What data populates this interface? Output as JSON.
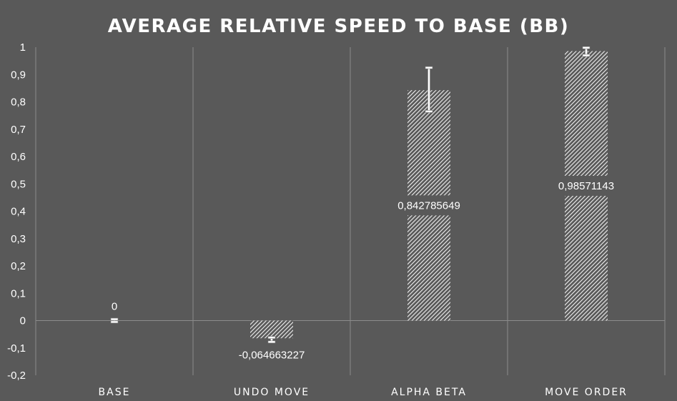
{
  "chart_data": {
    "type": "bar",
    "title": "AVERAGE RELATIVE SPEED TO BASE (BB)",
    "categories": [
      "BASE",
      "UNDO MOVE",
      "ALPHA BETA",
      "MOVE ORDER"
    ],
    "values": [
      0,
      -0.064663227,
      0.842785649,
      0.98571143
    ],
    "data_labels": [
      "0",
      "-0,064663227",
      "0,842785649",
      "0,98571143"
    ],
    "error_bars": [
      {
        "low": -0.005,
        "high": 0.005
      },
      {
        "low": -0.078,
        "high": -0.062
      },
      {
        "low": 0.765,
        "high": 0.925
      },
      {
        "low": 0.97,
        "high": 0.998
      }
    ],
    "ylim": [
      -0.2,
      1
    ],
    "yticks": [
      {
        "value": 1,
        "label": "1"
      },
      {
        "value": 0.9,
        "label": "0,9"
      },
      {
        "value": 0.8,
        "label": "0,8"
      },
      {
        "value": 0.7,
        "label": "0,7"
      },
      {
        "value": 0.6,
        "label": "0,6"
      },
      {
        "value": 0.5,
        "label": "0,5"
      },
      {
        "value": 0.4,
        "label": "0,4"
      },
      {
        "value": 0.3,
        "label": "0,3"
      },
      {
        "value": 0.2,
        "label": "0,2"
      },
      {
        "value": 0.1,
        "label": "0,1"
      },
      {
        "value": 0,
        "label": "0"
      },
      {
        "value": -0.1,
        "label": "-0,1"
      },
      {
        "value": -0.2,
        "label": "-0,2"
      }
    ],
    "xlabel": "",
    "ylabel": "",
    "grid": "vertical category separators",
    "bar_fill": "diagonal hatch white on gray",
    "colors": {
      "background": "#595959",
      "text": "#ffffff",
      "gridline": "#8c8c8c",
      "bar_hatch": "#ffffff"
    }
  }
}
